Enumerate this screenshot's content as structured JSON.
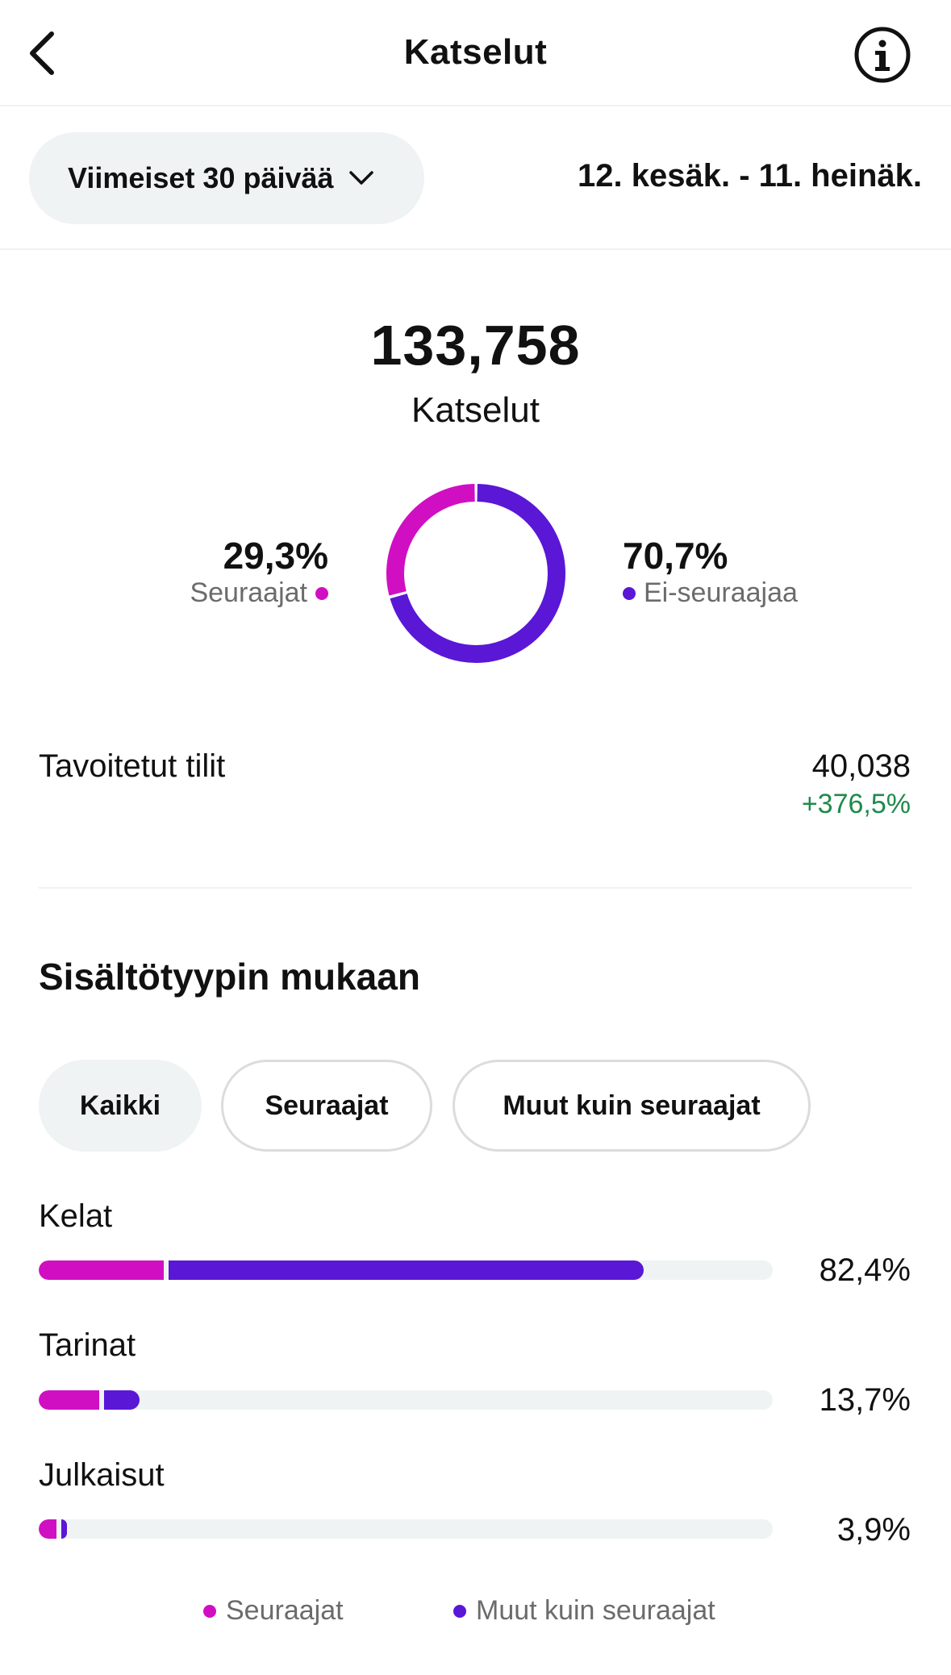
{
  "header": {
    "title": "Katselut"
  },
  "date_filter": {
    "range_label": "Viimeiset 30 päivää",
    "date_range": "12. kesäk. - 11. heinäk."
  },
  "total": {
    "value": "133,758",
    "label": "Katselut"
  },
  "audience": {
    "followers_pct": "29,3%",
    "followers_label": "Seuraajat",
    "followers_share": 0.293,
    "non_followers_pct": "70,7%",
    "non_followers_label": "Ei-seuraajaa",
    "non_followers_share": 0.707
  },
  "reach": {
    "label": "Tavoitetut tilit",
    "value": "40,038",
    "change": "+376,5%"
  },
  "content_type": {
    "title": "Sisältötyypin mukaan",
    "filters": [
      {
        "label": "Kaikki",
        "active": true
      },
      {
        "label": "Seuraajat",
        "active": false
      },
      {
        "label": "Muut kuin seuraajat",
        "active": false
      }
    ],
    "rows": [
      {
        "label": "Kelat",
        "pct": "82,4%",
        "value": 82.4,
        "followers": 17.4,
        "non_followers": 65.0
      },
      {
        "label": "Tarinat",
        "pct": "13,7%",
        "value": 13.7,
        "followers": 8.6,
        "non_followers": 5.1
      },
      {
        "label": "Julkaisut",
        "pct": "3,9%",
        "value": 3.9,
        "followers": 2.8,
        "non_followers": 1.1
      }
    ],
    "legend": {
      "followers": "Seuraajat",
      "non_followers": "Muut kuin seuraajat"
    }
  },
  "colors": {
    "followers": "#d10fc2",
    "non_followers": "#5a17d6",
    "positive": "#1f8a4c",
    "track": "#eff3f4"
  },
  "icons": {
    "back": "chevron-left-icon",
    "info": "info-circle-icon",
    "dropdown": "chevron-down-icon"
  }
}
